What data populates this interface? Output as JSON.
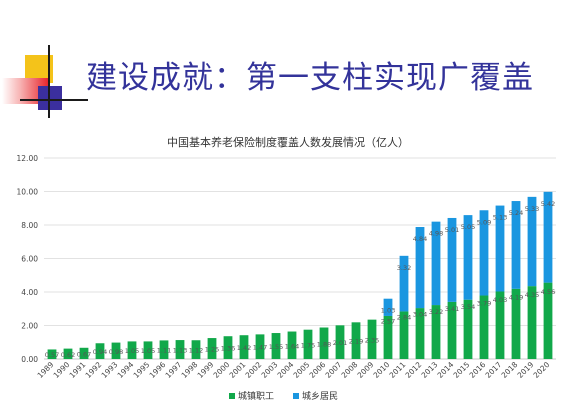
{
  "slide": {
    "title": "建设成就：第一支柱实现广覆盖"
  },
  "chart_data": {
    "type": "bar",
    "stacked": true,
    "title": "中国基本养老保险制度覆盖人数发展情况（亿人）",
    "xlabel": "",
    "ylabel": "",
    "ylim": [
      0,
      12
    ],
    "yticks": [
      "0.00",
      "2.00",
      "4.00",
      "6.00",
      "8.00",
      "10.00",
      "12.00"
    ],
    "grid": true,
    "legend": "bottom",
    "categories": [
      "1989",
      "1990",
      "1991",
      "1992",
      "1993",
      "1994",
      "1995",
      "1996",
      "1997",
      "1998",
      "1999",
      "2000",
      "2001",
      "2002",
      "2003",
      "2004",
      "2005",
      "2006",
      "2007",
      "2008",
      "2009",
      "2010",
      "2011",
      "2012",
      "2013",
      "2014",
      "2015",
      "2016",
      "2017",
      "2018",
      "2019",
      "2020"
    ],
    "series": [
      {
        "name": "城镇职工",
        "color": "#11a84a",
        "values": [
          0.57,
          0.62,
          0.67,
          0.94,
          0.98,
          1.05,
          1.05,
          1.11,
          1.13,
          1.12,
          1.25,
          1.36,
          1.42,
          1.47,
          1.55,
          1.64,
          1.75,
          1.88,
          2.01,
          2.19,
          2.35,
          2.57,
          2.84,
          3.04,
          3.22,
          3.41,
          3.54,
          3.79,
          4.03,
          4.19,
          4.35,
          4.56
        ],
        "labels": [
          "0.57",
          "0.62",
          "0.67",
          "0.94",
          "0.98",
          "1.05",
          "1.05",
          "1.11",
          "1.13",
          "1.12",
          "1.25",
          "1.36",
          "1.42",
          "1.47",
          "1.55",
          "1.64",
          "1.75",
          "1.88",
          "2.01",
          "2.19",
          "2.35",
          "2.57",
          "2.84",
          "3.04",
          "3.22",
          "3.41",
          "3.54",
          "3.79",
          "4.03",
          "4.19",
          "4.35",
          "4.56"
        ]
      },
      {
        "name": "城乡居民",
        "color": "#1a96e0",
        "values": [
          0,
          0,
          0,
          0,
          0,
          0,
          0,
          0,
          0,
          0,
          0,
          0,
          0,
          0,
          0,
          0,
          0,
          0,
          0,
          0,
          0,
          1.03,
          3.32,
          4.84,
          4.98,
          5.01,
          5.05,
          5.09,
          5.13,
          5.24,
          5.33,
          5.42
        ],
        "labels": [
          "",
          "",
          "",
          "",
          "",
          "",
          "",
          "",
          "",
          "",
          "",
          "",
          "",
          "",
          "",
          "",
          "",
          "",
          "",
          "",
          "",
          "1.03",
          "3.32",
          "4.84",
          "4.98",
          "5.01",
          "5.05",
          "5.09",
          "5.13",
          "5.24",
          "5.33",
          "5.42"
        ]
      }
    ]
  }
}
